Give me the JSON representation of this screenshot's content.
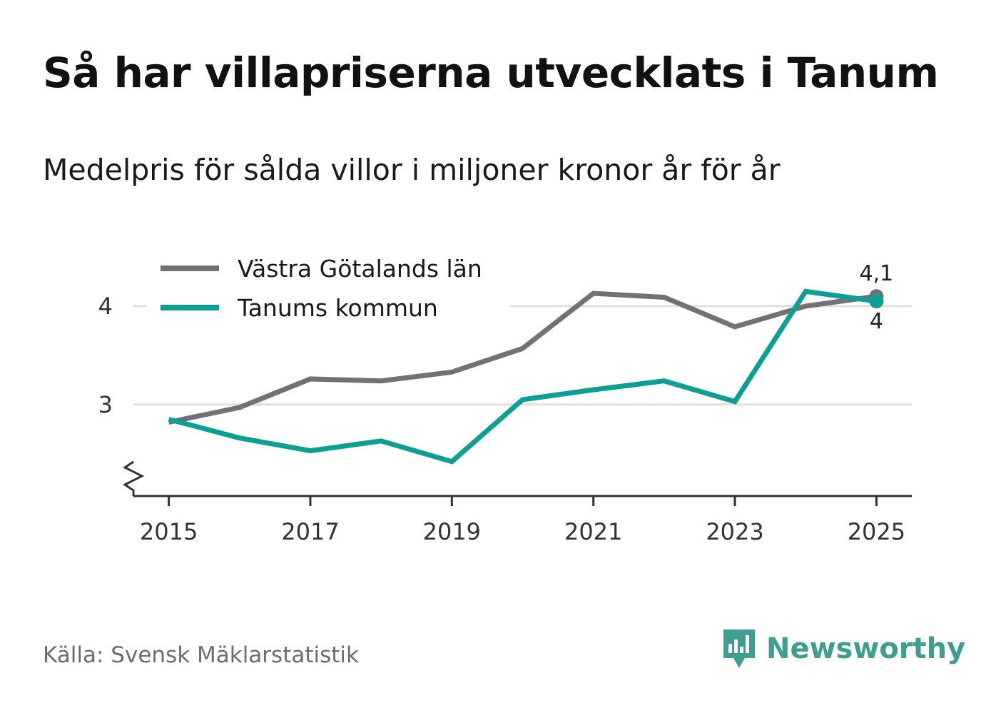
{
  "header": {
    "title": "Så har villapriserna utvecklats i Tanum",
    "subtitle": "Medelpris för sålda villor i miljoner kronor år för år"
  },
  "footer": {
    "source": "Källa: Svensk Mäklarstatistik",
    "brand": "Newsworthy"
  },
  "colors": {
    "series_lan": "#727176",
    "series_kommun": "#0d9f94",
    "grid": "#e0e0e0",
    "axis": "#333333",
    "brand": "#3f9d91"
  },
  "chart_data": {
    "type": "line",
    "title": "Så har villapriserna utvecklats i Tanum",
    "subtitle": "Medelpris för sålda villor i miljoner kronor år för år",
    "xlabel": "",
    "ylabel": "",
    "x": [
      2015,
      2016,
      2017,
      2018,
      2019,
      2020,
      2021,
      2022,
      2023,
      2024,
      2025
    ],
    "xticks": [
      "2015",
      "2017",
      "2019",
      "2021",
      "2023",
      "2025"
    ],
    "yticks": [
      "3",
      "4"
    ],
    "ylim": [
      2.07,
      4.5
    ],
    "xlim": [
      2014.5,
      2025.5
    ],
    "grid": true,
    "axis_break": true,
    "legend_position": "top-left",
    "series": [
      {
        "name": "Västra Götalands län",
        "color": "#727176",
        "values": [
          2.82,
          2.97,
          3.26,
          3.24,
          3.33,
          3.57,
          4.13,
          4.09,
          3.79,
          4.0,
          4.1
        ],
        "end_label": "4,1"
      },
      {
        "name": "Tanums kommun",
        "color": "#0d9f94",
        "values": [
          2.85,
          2.66,
          2.53,
          2.63,
          2.42,
          3.05,
          3.15,
          3.24,
          3.03,
          4.15,
          4.05
        ],
        "end_label": "4"
      }
    ]
  }
}
